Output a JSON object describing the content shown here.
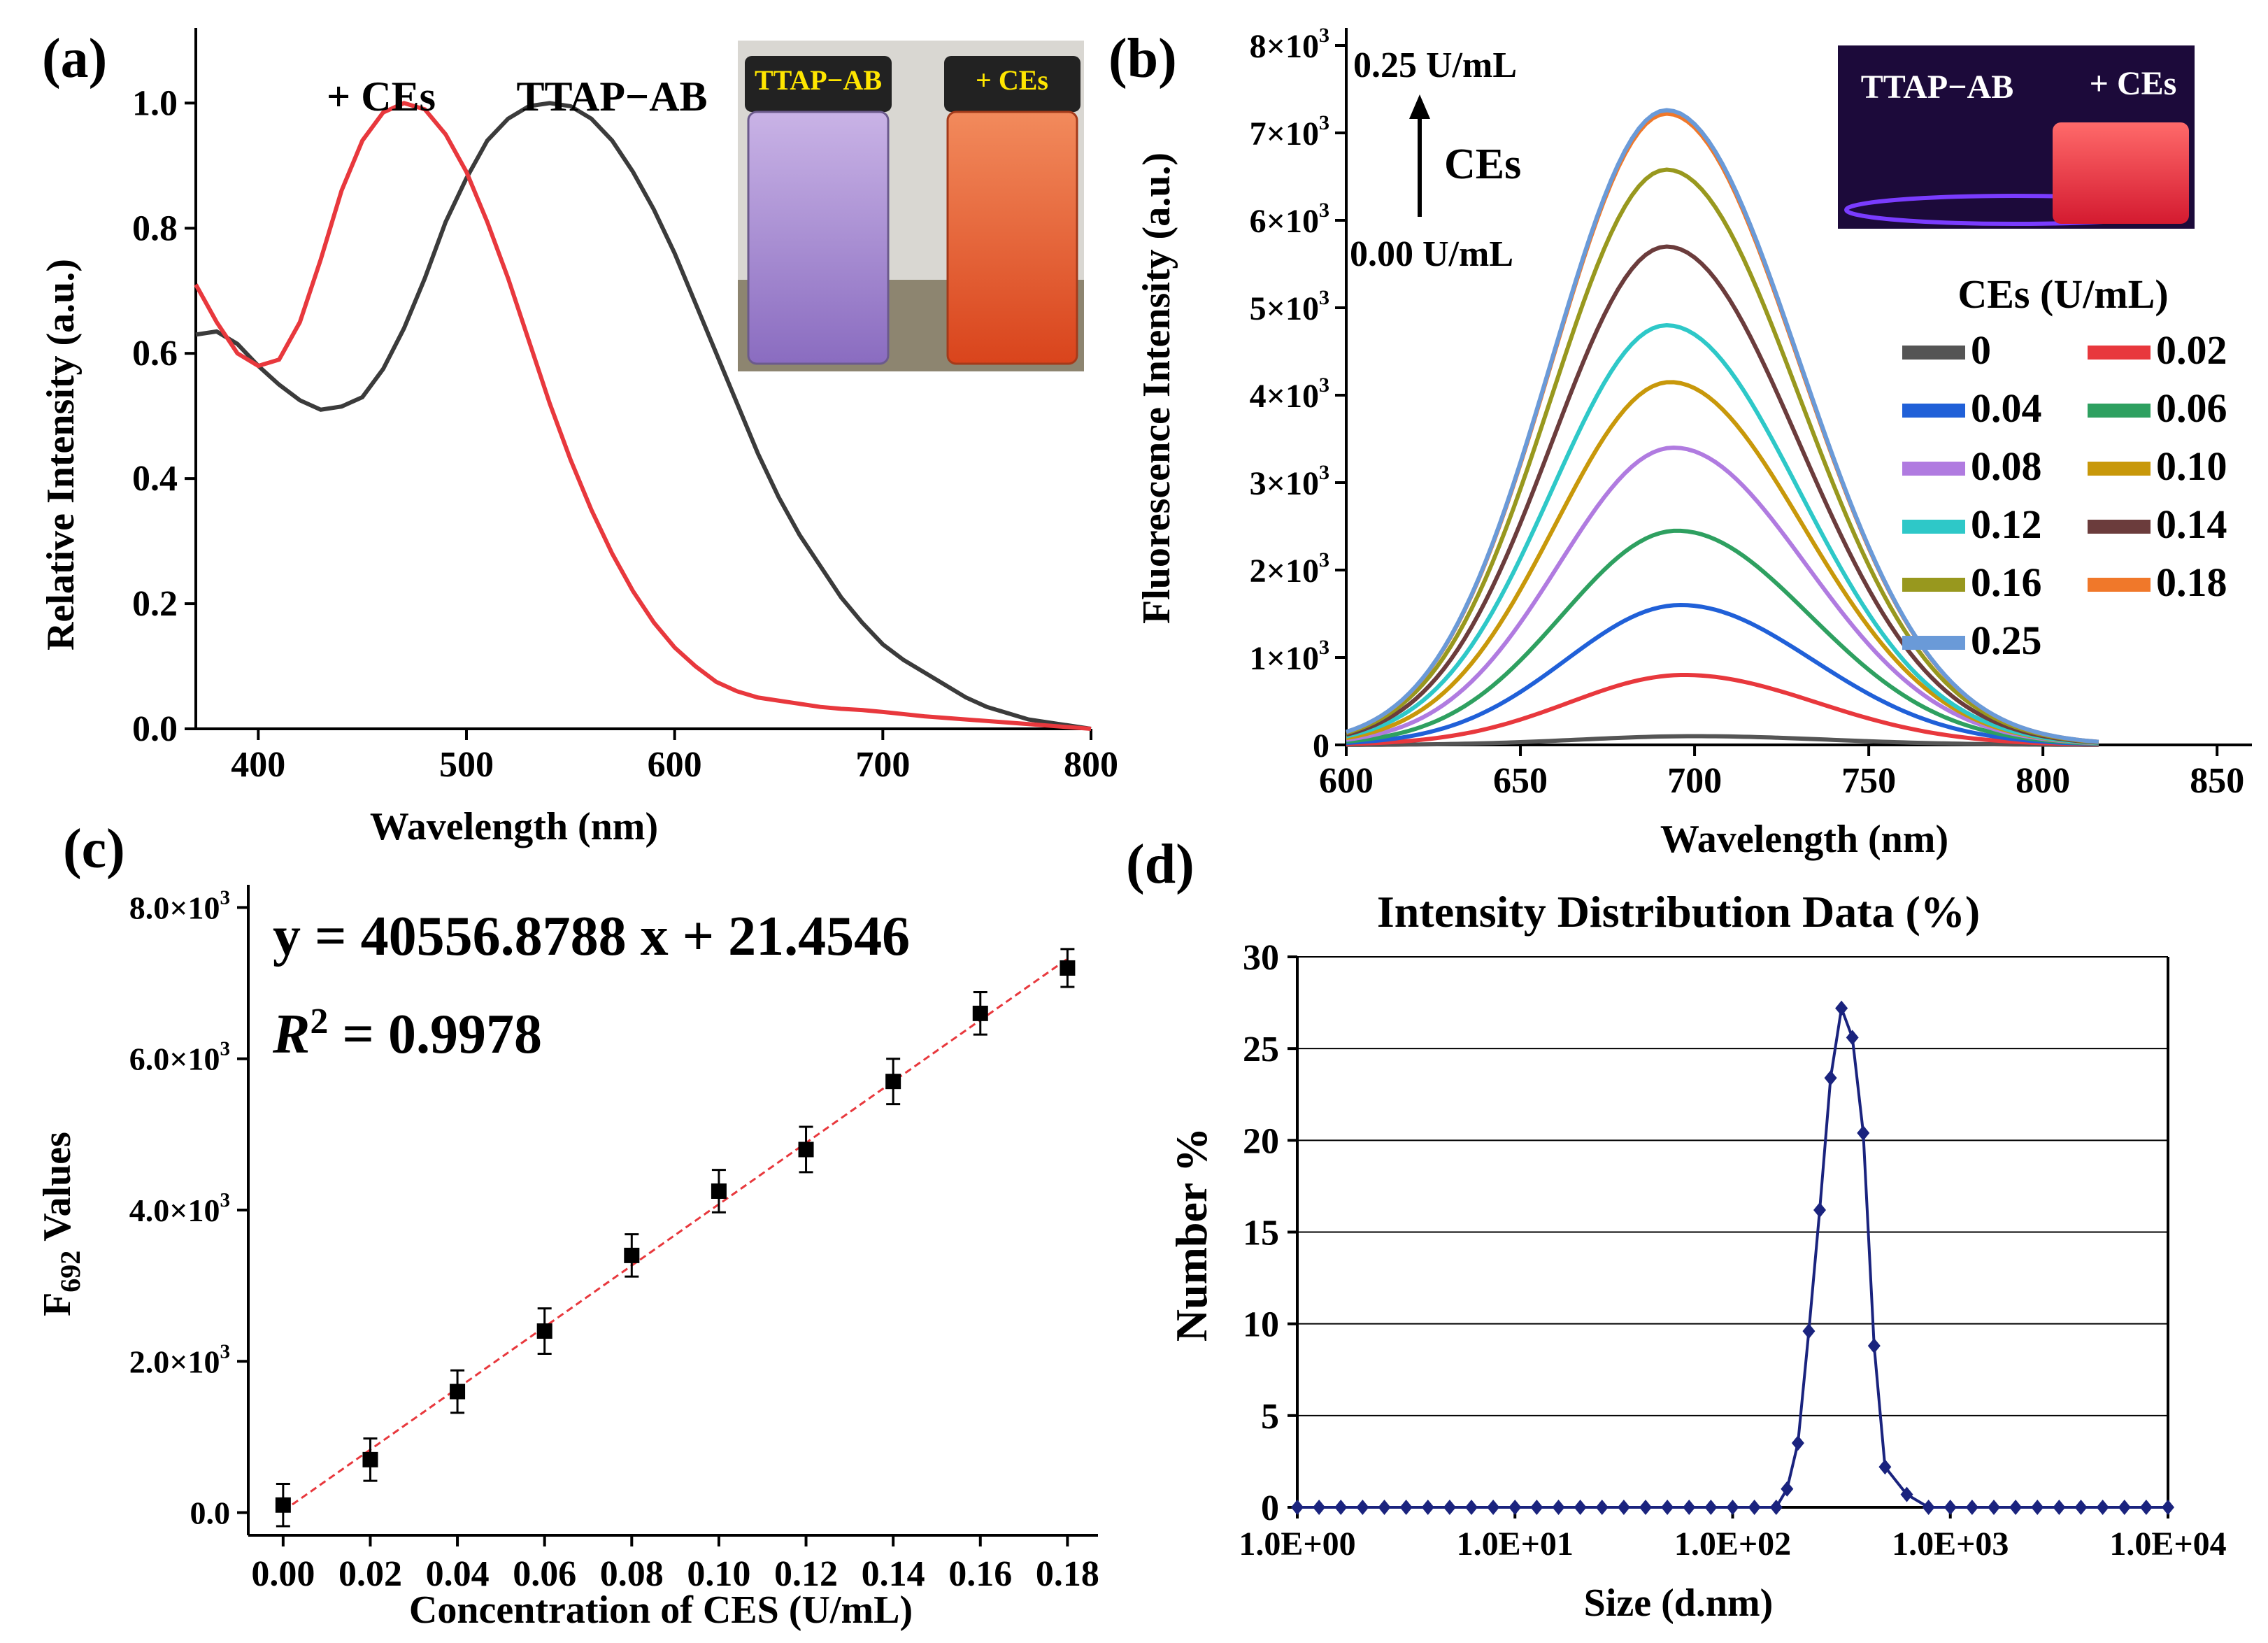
{
  "chart_data": [
    {
      "panel": "(a)",
      "type": "line",
      "xlabel": "Wavelength (nm)",
      "ylabel": "Relative Intensity (a.u.)",
      "xlim": [
        370,
        800
      ],
      "ylim": [
        0,
        1.12
      ],
      "xticks": [
        "400",
        "500",
        "600",
        "700",
        "800"
      ],
      "yticks": [
        "0.0",
        "0.2",
        "0.4",
        "0.6",
        "0.8",
        "1.0"
      ],
      "series": [
        {
          "name": "TTAP−AB",
          "color": "#3b3b3b",
          "x": [
            370,
            380,
            390,
            400,
            410,
            420,
            430,
            440,
            450,
            460,
            470,
            480,
            490,
            500,
            510,
            520,
            530,
            540,
            550,
            560,
            570,
            580,
            590,
            600,
            610,
            620,
            630,
            640,
            650,
            660,
            670,
            680,
            690,
            700,
            710,
            720,
            730,
            740,
            750,
            760,
            770,
            780,
            790,
            800
          ],
          "y": [
            0.63,
            0.635,
            0.615,
            0.58,
            0.55,
            0.525,
            0.51,
            0.515,
            0.53,
            0.575,
            0.64,
            0.72,
            0.81,
            0.88,
            0.94,
            0.975,
            0.995,
            1.0,
            0.995,
            0.975,
            0.94,
            0.89,
            0.83,
            0.76,
            0.68,
            0.6,
            0.52,
            0.44,
            0.37,
            0.31,
            0.26,
            0.21,
            0.17,
            0.135,
            0.11,
            0.09,
            0.07,
            0.05,
            0.035,
            0.025,
            0.015,
            0.01,
            0.005,
            0.0
          ]
        },
        {
          "name": "+ CEs",
          "color": "#e8383d",
          "x": [
            370,
            380,
            390,
            400,
            410,
            420,
            430,
            440,
            450,
            460,
            470,
            480,
            490,
            500,
            510,
            520,
            530,
            540,
            550,
            560,
            570,
            580,
            590,
            600,
            610,
            620,
            630,
            640,
            650,
            660,
            670,
            680,
            690,
            700,
            720,
            740,
            760,
            780,
            800
          ],
          "y": [
            0.71,
            0.65,
            0.6,
            0.58,
            0.59,
            0.65,
            0.75,
            0.86,
            0.94,
            0.985,
            1.0,
            0.99,
            0.95,
            0.89,
            0.81,
            0.72,
            0.62,
            0.52,
            0.43,
            0.35,
            0.28,
            0.22,
            0.17,
            0.13,
            0.1,
            0.075,
            0.06,
            0.05,
            0.045,
            0.04,
            0.035,
            0.032,
            0.03,
            0.027,
            0.02,
            0.015,
            0.01,
            0.005,
            0.0
          ]
        }
      ],
      "annotations": [
        "+ CEs",
        "TTAP−AB"
      ],
      "inset": {
        "left_label": "TTAP−AB",
        "right_label": "+ CEs",
        "left_color": "#a98bcf",
        "right_color": "#e8522d"
      }
    },
    {
      "panel": "(b)",
      "type": "line",
      "xlabel": "Wavelength (nm)",
      "ylabel": "Fluorescence Intensity (a.u.)",
      "xlim": [
        600,
        860
      ],
      "ylim": [
        0,
        8200
      ],
      "xticks": [
        "600",
        "650",
        "700",
        "750",
        "800",
        "850"
      ],
      "yticks": [
        {
          "value": 0,
          "base": "0",
          "exp": ""
        },
        {
          "value": 1000,
          "base": "1×10",
          "exp": "3"
        },
        {
          "value": 2000,
          "base": "2×10",
          "exp": "3"
        },
        {
          "value": 3000,
          "base": "3×10",
          "exp": "3"
        },
        {
          "value": 4000,
          "base": "4×10",
          "exp": "3"
        },
        {
          "value": 5000,
          "base": "5×10",
          "exp": "3"
        },
        {
          "value": 6000,
          "base": "6×10",
          "exp": "3"
        },
        {
          "value": 7000,
          "base": "7×10",
          "exp": "3"
        },
        {
          "value": 8000,
          "base": "8×10",
          "exp": "3"
        }
      ],
      "legend_title": "CEs (U/mL)",
      "series": [
        {
          "name": "0",
          "peak": 100,
          "center": 700,
          "color": "#555555"
        },
        {
          "name": "0.02",
          "peak": 800,
          "center": 697,
          "color": "#e8383d"
        },
        {
          "name": "0.04",
          "peak": 1600,
          "center": 696,
          "color": "#2060d8"
        },
        {
          "name": "0.06",
          "peak": 2450,
          "center": 695,
          "color": "#2ea060"
        },
        {
          "name": "0.08",
          "peak": 3400,
          "center": 694,
          "color": "#b07be0"
        },
        {
          "name": "0.10",
          "peak": 4150,
          "center": 693,
          "color": "#c8980a"
        },
        {
          "name": "0.12",
          "peak": 4800,
          "center": 692,
          "color": "#2ec8c8"
        },
        {
          "name": "0.14",
          "peak": 5700,
          "center": 692,
          "color": "#6b3c3c"
        },
        {
          "name": "0.16",
          "peak": 6580,
          "center": 692,
          "color": "#98981e"
        },
        {
          "name": "0.18",
          "peak": 7220,
          "center": 692,
          "color": "#f0782a"
        },
        {
          "name": "0.25",
          "peak": 7260,
          "center": 692,
          "color": "#6a9ad8"
        }
      ],
      "annotations": {
        "top": "0.25 U/mL",
        "middle": "CEs",
        "bottom": "0.00 U/mL"
      },
      "inset": {
        "left_label": "TTAP−AB",
        "right_label": "+ CEs"
      }
    },
    {
      "panel": "(c)",
      "type": "scatter",
      "xlabel": "Concentration of CES (U/mL)",
      "ylabel_main": "F",
      "ylabel_sub": "692",
      "ylabel_rest": " Values",
      "xlim": [
        -0.008,
        0.187
      ],
      "ylim": [
        -300,
        8300
      ],
      "xticks": [
        "0.00",
        "0.02",
        "0.04",
        "0.06",
        "0.08",
        "0.10",
        "0.12",
        "0.14",
        "0.16",
        "0.18"
      ],
      "yticks": [
        {
          "value": 0,
          "base": "0.0",
          "exp": ""
        },
        {
          "value": 2000,
          "base": "2.0×10",
          "exp": "3"
        },
        {
          "value": 4000,
          "base": "4.0×10",
          "exp": "3"
        },
        {
          "value": 6000,
          "base": "6.0×10",
          "exp": "3"
        },
        {
          "value": 8000,
          "base": "8.0×10",
          "exp": "3"
        }
      ],
      "x": [
        0.0,
        0.02,
        0.04,
        0.06,
        0.08,
        0.1,
        0.12,
        0.14,
        0.16,
        0.18
      ],
      "y": [
        100,
        700,
        1600,
        2400,
        3400,
        4250,
        4800,
        5700,
        6600,
        7200
      ],
      "err": [
        280,
        280,
        280,
        300,
        280,
        280,
        300,
        300,
        280,
        250
      ],
      "fit": {
        "slope": 40556.8788,
        "intercept": 21.4546,
        "color": "#e8383d"
      },
      "equation": "y = 40556.8788 x + 21.4546",
      "r2_label": "R",
      "r2_exp": "2",
      "r2_value": " = 0.9978"
    },
    {
      "panel": "(d)",
      "type": "line",
      "title": "Intensity Distribution Data (%)",
      "xlabel": "Size (d.nm)",
      "ylabel": "Number %",
      "xscale": "log",
      "xlim_log10": [
        0,
        4
      ],
      "ylim": [
        0,
        30
      ],
      "xticks": [
        "1.0E+00",
        "1.0E+01",
        "1.0E+02",
        "1.0E+03",
        "1.0E+04"
      ],
      "yticks": [
        "0",
        "5",
        "10",
        "15",
        "20",
        "25",
        "30"
      ],
      "color": "#1a237e",
      "points_log10_x": [
        0.0,
        0.1,
        0.2,
        0.3,
        0.4,
        0.5,
        0.6,
        0.7,
        0.8,
        0.9,
        1.0,
        1.1,
        1.2,
        1.3,
        1.4,
        1.5,
        1.6,
        1.7,
        1.8,
        1.9,
        2.0,
        2.1,
        2.2,
        2.25,
        2.3,
        2.35,
        2.4,
        2.45,
        2.5,
        2.55,
        2.6,
        2.65,
        2.7,
        2.8,
        2.9,
        3.0,
        3.1,
        3.2,
        3.3,
        3.4,
        3.5,
        3.6,
        3.7,
        3.8,
        3.9,
        4.0
      ],
      "y": [
        0,
        0,
        0,
        0,
        0,
        0,
        0,
        0,
        0,
        0,
        0,
        0,
        0,
        0,
        0,
        0,
        0,
        0,
        0,
        0,
        0,
        0,
        0,
        1.0,
        3.5,
        9.6,
        16.2,
        23.4,
        27.2,
        25.6,
        20.4,
        8.8,
        2.2,
        0.7,
        0,
        0,
        0,
        0,
        0,
        0,
        0,
        0,
        0,
        0,
        0,
        0
      ]
    }
  ]
}
